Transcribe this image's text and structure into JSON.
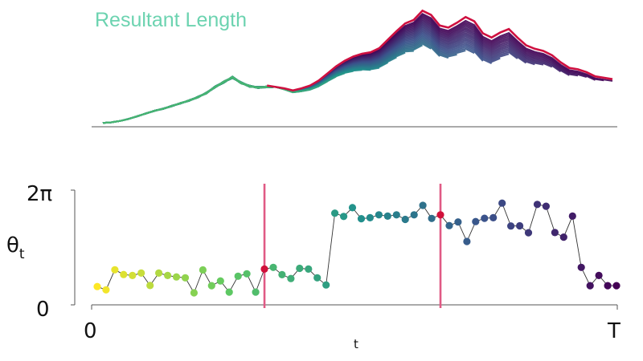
{
  "chart_data": [
    {
      "type": "line",
      "title": "Resultant Length",
      "title_color": "#6cd3b0",
      "max_envelope_color": "#cf1040",
      "colormap": "viridis",
      "n_points": 60,
      "ylim": [
        0,
        1
      ],
      "envelope": [
        0.02,
        0.03,
        0.05,
        0.08,
        0.12,
        0.16,
        0.2,
        0.23,
        0.27,
        0.31,
        0.35,
        0.4,
        0.46,
        0.55,
        0.62,
        0.69,
        0.61,
        0.56,
        0.54,
        0.55,
        0.53,
        0.51,
        0.48,
        0.51,
        0.55,
        0.62,
        0.72,
        0.82,
        0.9,
        0.96,
        1.0,
        1.02,
        1.08,
        1.2,
        1.32,
        1.43,
        1.48,
        1.61,
        1.55,
        1.4,
        1.37,
        1.44,
        1.52,
        1.46,
        1.29,
        1.23,
        1.3,
        1.35,
        1.23,
        1.12,
        1.07,
        1.04,
        0.98,
        0.88,
        0.8,
        0.78,
        0.74,
        0.68,
        0.66,
        0.64
      ]
    },
    {
      "type": "scatter",
      "xlabel": "t",
      "ylabel": "θ",
      "ylabel_sub": "t",
      "ytick_labels": [
        "0",
        "2π"
      ],
      "xtick_labels": [
        "0",
        "T"
      ],
      "ylim": [
        0,
        6.2832
      ],
      "segments": [
        {
          "start": 0,
          "end": 19,
          "color": "#cde335"
        },
        {
          "start": 20,
          "end": 39,
          "color": "#30b883"
        },
        {
          "start": 40,
          "end": 59,
          "color": "#2d6e8e"
        }
      ],
      "change_points": [
        19,
        39
      ],
      "change_point_line_color": "#e05a85",
      "change_point_marker_color": "#d0103a",
      "values": [
        1.0,
        0.82,
        1.92,
        1.66,
        1.61,
        1.74,
        1.06,
        1.74,
        1.61,
        1.53,
        1.48,
        0.66,
        1.91,
        1.05,
        1.31,
        0.7,
        1.57,
        1.7,
        0.7,
        1.96,
        2.05,
        1.65,
        1.44,
        2.0,
        1.96,
        1.48,
        1.09,
        5.02,
        4.84,
        5.32,
        4.72,
        4.77,
        4.93,
        4.86,
        4.93,
        4.68,
        4.93,
        5.45,
        4.73,
        4.93,
        4.34,
        4.54,
        3.47,
        4.56,
        4.74,
        4.77,
        5.57,
        4.32,
        4.33,
        3.95,
        5.5,
        5.4,
        3.96,
        3.71,
        4.86,
        2.05,
        1.05,
        1.61,
        1.05,
        1.05
      ]
    }
  ]
}
